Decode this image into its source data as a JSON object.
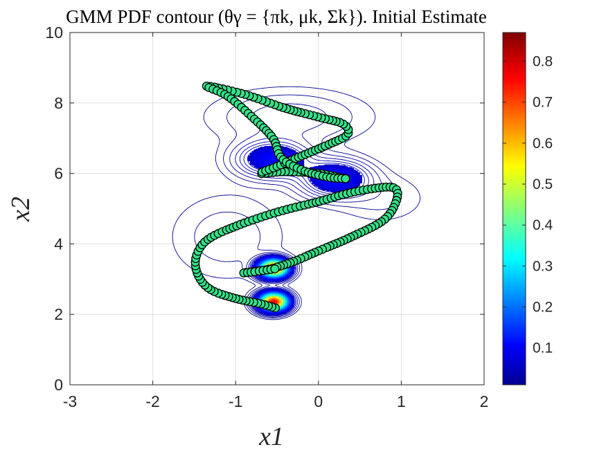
{
  "chart_data": {
    "type": "scatter",
    "title": "GMM PDF contour (θγ = {πk, μk, Σk}). Initial Estimate",
    "xlabel": "x1",
    "ylabel": "x2",
    "xlim": [
      -3,
      2
    ],
    "ylim": [
      0,
      10
    ],
    "xticks": [
      "-3",
      "-2",
      "-1",
      "0",
      "1",
      "2"
    ],
    "yticks": [
      "0",
      "2",
      "4",
      "6",
      "8",
      "10"
    ],
    "grid": true,
    "colorbar": {
      "colormap": "jet",
      "range": [
        0.01,
        0.87
      ],
      "ticks": [
        "0.1",
        "0.2",
        "0.3",
        "0.4",
        "0.5",
        "0.6",
        "0.7",
        "0.8"
      ]
    },
    "gmm_components": [
      {
        "mu": [
          -0.55,
          3.3
        ],
        "sigma": [
          0.11,
          0.16
        ],
        "weight": 0.085
      },
      {
        "mu": [
          -0.55,
          2.35
        ],
        "sigma": [
          0.11,
          0.16
        ],
        "weight": 0.085
      },
      {
        "mu": [
          -0.55,
          6.4
        ],
        "sigma": [
          0.28,
          0.32
        ],
        "weight": 0.06
      },
      {
        "mu": [
          0.2,
          5.85
        ],
        "sigma": [
          0.26,
          0.33
        ],
        "weight": 0.06
      },
      {
        "mu": [
          -0.35,
          7.6
        ],
        "sigma": [
          0.6,
          0.5
        ],
        "weight": 0.05
      },
      {
        "mu": [
          -1.1,
          4.2
        ],
        "sigma": [
          0.45,
          0.8
        ],
        "weight": 0.04
      },
      {
        "mu": [
          0.75,
          5.3
        ],
        "sigma": [
          0.35,
          0.45
        ],
        "weight": 0.015
      }
    ],
    "trajectory_waypoints": [
      {
        "x": -0.52,
        "y": 2.18
      },
      {
        "x": -0.7,
        "y": 2.3
      },
      {
        "x": -1.0,
        "y": 2.45
      },
      {
        "x": -1.3,
        "y": 2.7
      },
      {
        "x": -1.45,
        "y": 3.1
      },
      {
        "x": -1.48,
        "y": 3.6
      },
      {
        "x": -1.35,
        "y": 4.1
      },
      {
        "x": -1.0,
        "y": 4.5
      },
      {
        "x": -0.5,
        "y": 4.9
      },
      {
        "x": 0.0,
        "y": 5.2
      },
      {
        "x": 0.3,
        "y": 5.4
      },
      {
        "x": 0.6,
        "y": 5.55
      },
      {
        "x": 0.9,
        "y": 5.6
      },
      {
        "x": 0.95,
        "y": 5.3
      },
      {
        "x": 0.8,
        "y": 4.7
      },
      {
        "x": 0.4,
        "y": 4.2
      },
      {
        "x": 0.0,
        "y": 3.8
      },
      {
        "x": -0.3,
        "y": 3.5
      },
      {
        "x": -0.6,
        "y": 3.28
      },
      {
        "x": -0.9,
        "y": 3.18
      },
      {
        "x": -0.8,
        "y": 3.2
      },
      {
        "x": -0.5,
        "y": 3.3
      }
    ],
    "trajectory_waypoints_upper": [
      {
        "x": 0.33,
        "y": 5.85
      },
      {
        "x": 0.0,
        "y": 6.0
      },
      {
        "x": -0.4,
        "y": 6.05
      },
      {
        "x": -0.7,
        "y": 6.0
      },
      {
        "x": -0.5,
        "y": 6.2
      },
      {
        "x": -0.2,
        "y": 6.5
      },
      {
        "x": 0.1,
        "y": 6.8
      },
      {
        "x": 0.35,
        "y": 7.1
      },
      {
        "x": 0.3,
        "y": 7.4
      },
      {
        "x": 0.0,
        "y": 7.6
      },
      {
        "x": -0.4,
        "y": 7.85
      },
      {
        "x": -0.9,
        "y": 8.25
      },
      {
        "x": -1.35,
        "y": 8.48
      },
      {
        "x": -1.1,
        "y": 8.2
      },
      {
        "x": -0.8,
        "y": 7.6
      },
      {
        "x": -0.55,
        "y": 7.0
      },
      {
        "x": -0.45,
        "y": 6.45
      },
      {
        "x": -0.2,
        "y": 6.1
      },
      {
        "x": 0.1,
        "y": 5.9
      },
      {
        "x": 0.33,
        "y": 5.85
      }
    ]
  }
}
